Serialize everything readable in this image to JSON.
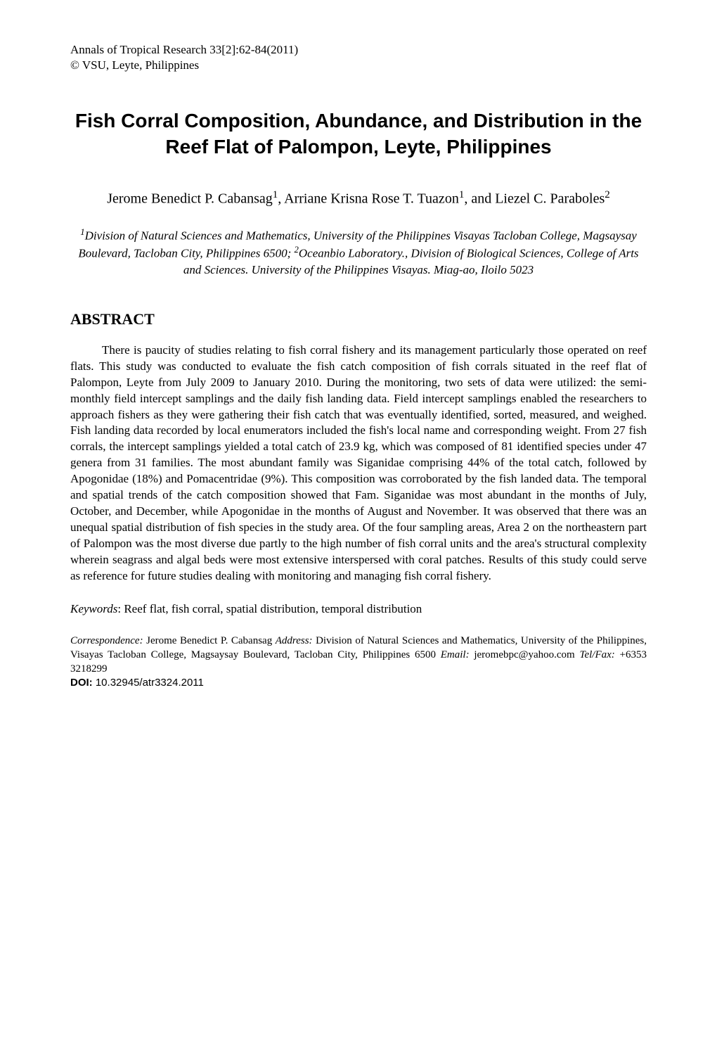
{
  "journal": {
    "line1": "Annals of Tropical Research 33[2]:62-84(2011)",
    "line2": "© VSU, Leyte, Philippines"
  },
  "title": "Fish Corral Composition, Abundance, and Distribution in the Reef Flat of Palompon, Leyte, Philippines",
  "authors": {
    "a1_name": "Jerome Benedict P. Cabansag",
    "a1_sup": "1",
    "sep1": ", ",
    "a2_name": "Arriane Krisna Rose T. Tuazon",
    "a2_sup": "1",
    "sep2": ", and ",
    "a3_name": "Liezel C. Paraboles",
    "a3_sup": "2"
  },
  "affiliations": {
    "sup1": "1",
    "aff1": "Division of Natural Sciences and Mathematics, University of the Philippines Visayas Tacloban College, Magsaysay Boulevard, Tacloban City, Philippines 6500; ",
    "sup2": "2",
    "aff2": "Oceanbio Laboratory., Division of Biological Sciences, College of Arts and Sciences. University of the Philippines Visayas. Miag-ao, Iloilo 5023"
  },
  "abstract_heading": "ABSTRACT",
  "abstract_body": "There is paucity of studies relating to fish corral fishery and its management particularly those operated on reef flats. This study was conducted to evaluate the fish catch composition of fish corrals situated in the reef flat of Palompon, Leyte from July 2009 to January 2010. During the monitoring, two sets of data were utilized: the semi-monthly field intercept samplings and the daily fish landing data. Field intercept samplings enabled the researchers to approach fishers as they were gathering their fish catch that was eventually identified, sorted, measured, and weighed. Fish landing data recorded by local enumerators included the fish's local name and corresponding weight. From 27 fish corrals, the intercept samplings yielded a total catch of 23.9 kg, which was composed of 81 identified species under 47 genera from 31 families. The most abundant family was Siganidae comprising 44% of the total catch, followed by Apogonidae (18%) and Pomacentridae (9%). This composition was corroborated by the fish landed data. The temporal and spatial trends of the catch composition showed that Fam. Siganidae was most abundant in the months of July, October, and December, while Apogonidae in the months of August and November. It was observed that there was an unequal spatial distribution of fish species in the study area. Of the four sampling areas, Area 2 on the northeastern part of Palompon was the most diverse due partly to the high number of fish corral units and the area's  structural complexity wherein seagrass and algal beds were most extensive interspersed with coral patches. Results of this study could serve as reference for future studies dealing with monitoring and managing fish corral fishery.",
  "keywords": {
    "label": "Keywords",
    "text": ": Reef flat, fish corral, spatial distribution, temporal distribution"
  },
  "correspondence": {
    "corr_label": "Correspondence:",
    "corr_text": " Jerome Benedict P. Cabansag ",
    "addr_label": "Address:",
    "addr_text": " Division of Natural Sciences and Mathematics, University of the Philippines, Visayas Tacloban College, Magsaysay Boulevard, Tacloban City, Philippines 6500 ",
    "email_label": "Email:",
    "email_text": " jeromebpc@yahoo.com ",
    "tel_label": "Tel/Fax:",
    "tel_text": " +6353 3218299"
  },
  "doi": {
    "label": "DOI: ",
    "value": "10.32945/atr3324.2011"
  }
}
